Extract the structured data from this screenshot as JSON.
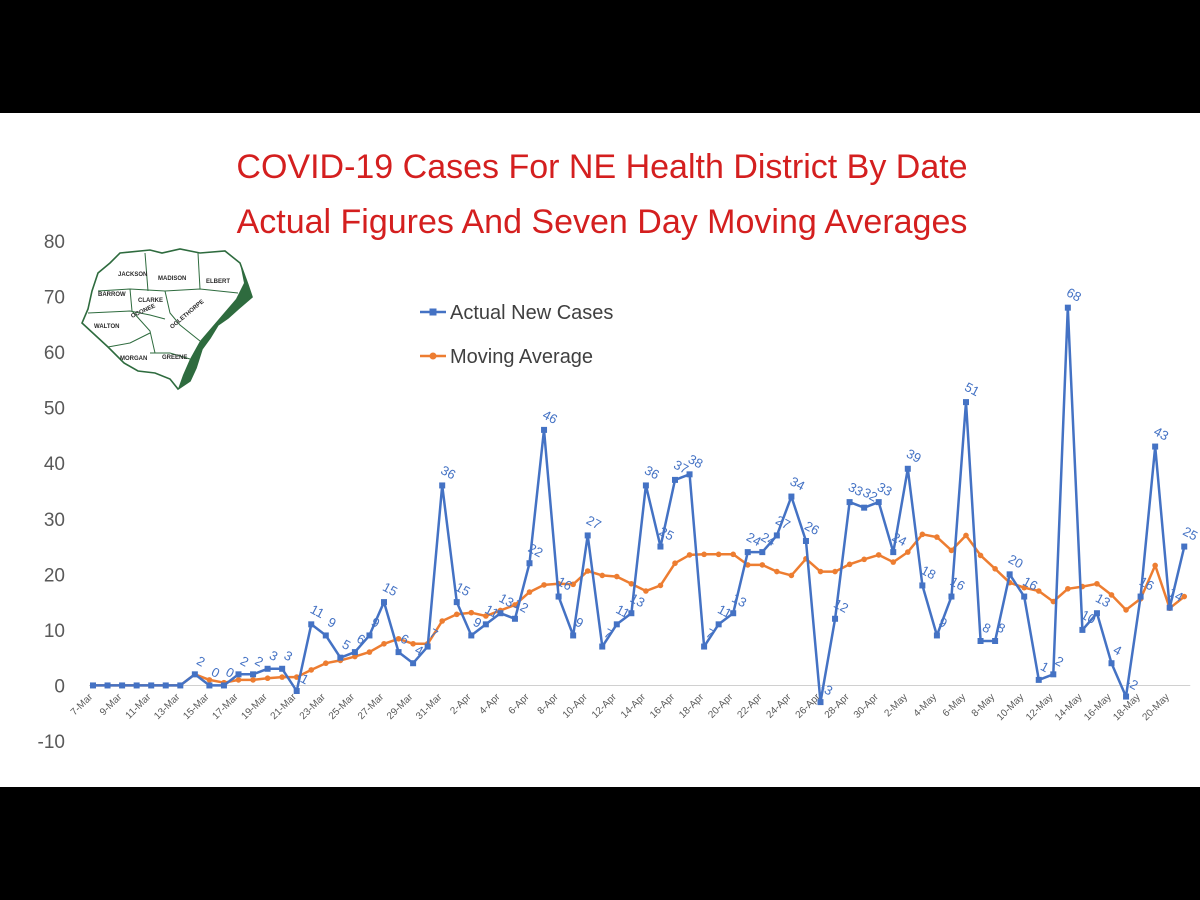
{
  "chart_data": {
    "type": "line",
    "title_lines": [
      "COVID-19 Cases For NE Health District By Date",
      "Actual Figures And Seven Day Moving Averages"
    ],
    "xlabel": "",
    "ylabel": "",
    "ylim": [
      -10,
      80
    ],
    "yticks": [
      "80",
      "70",
      "60",
      "50",
      "40",
      "30",
      "20",
      "10",
      "0",
      "-10"
    ],
    "grid": false,
    "legend_position": "top-center",
    "x_tick_labels": [
      "7-Mar",
      "9-Mar",
      "11-Mar",
      "13-Mar",
      "15-Mar",
      "17-Mar",
      "19-Mar",
      "21-Mar",
      "23-Mar",
      "25-Mar",
      "27-Mar",
      "29-Mar",
      "31-Mar",
      "2-Apr",
      "4-Apr",
      "6-Apr",
      "8-Apr",
      "10-Apr",
      "12-Apr",
      "14-Apr",
      "16-Apr",
      "18-Apr",
      "20-Apr",
      "22-Apr",
      "24-Apr",
      "26-Apr",
      "28-Apr",
      "30-Apr",
      "2-May",
      "4-May",
      "6-May",
      "8-May",
      "10-May",
      "12-May",
      "14-May",
      "16-May",
      "18-May",
      "20-May"
    ],
    "x_start": "7-Mar",
    "series": [
      {
        "name": "Actual New Cases",
        "color": "#4472c4",
        "marker": "square",
        "values": [
          0,
          0,
          0,
          0,
          0,
          0,
          0,
          2,
          0,
          0,
          2,
          2,
          3,
          3,
          -1,
          11,
          9,
          5,
          6,
          9,
          15,
          6,
          4,
          7,
          36,
          15,
          9,
          11,
          13,
          12,
          22,
          46,
          16,
          9,
          27,
          7,
          11,
          13,
          36,
          25,
          37,
          38,
          7,
          11,
          13,
          24,
          24,
          27,
          34,
          26,
          -3,
          12,
          33,
          32,
          33,
          24,
          39,
          18,
          9,
          16,
          51,
          8,
          8,
          20,
          16,
          1,
          2,
          68,
          10,
          13,
          4,
          -2,
          16,
          43,
          14,
          25
        ]
      },
      {
        "name": "Moving Average",
        "color": "#ed7d31",
        "marker": "circle",
        "values": [
          0,
          0,
          0,
          0,
          0,
          0,
          0,
          2,
          1,
          0.5,
          1,
          1,
          1.3,
          1.5,
          1.5,
          2.8,
          4,
          4.5,
          5.2,
          6,
          7.5,
          8.4,
          7.5,
          7.5,
          11.6,
          12.8,
          13.1,
          12.5,
          13.5,
          14.5,
          16.8,
          18.1,
          18.3,
          18.2,
          20.6,
          19.8,
          19.6,
          18.3,
          17,
          18,
          22,
          23.5,
          23.6,
          23.6,
          23.6,
          21.7,
          21.7,
          20.5,
          19.8,
          22.8,
          20.5,
          20.5,
          21.8,
          22.7,
          23.5,
          22.2,
          24,
          27.2,
          26.7,
          24.3,
          27,
          23.4,
          21,
          18.5,
          17.6,
          17,
          15.1,
          17.4,
          17.8,
          18.3,
          16.3,
          13.6,
          15.6,
          21.6,
          13.9,
          16
        ]
      }
    ],
    "data_labels": [
      {
        "i": 7,
        "text": "2"
      },
      {
        "i": 8,
        "text": "0"
      },
      {
        "i": 9,
        "text": "0"
      },
      {
        "i": 10,
        "text": "2"
      },
      {
        "i": 11,
        "text": "2"
      },
      {
        "i": 12,
        "text": "3"
      },
      {
        "i": 13,
        "text": "3"
      },
      {
        "i": 14,
        "text": "-1"
      },
      {
        "i": 15,
        "text": "11"
      },
      {
        "i": 16,
        "text": "9"
      },
      {
        "i": 17,
        "text": "5"
      },
      {
        "i": 18,
        "text": "6"
      },
      {
        "i": 19,
        "text": "9"
      },
      {
        "i": 20,
        "text": "15"
      },
      {
        "i": 21,
        "text": "6"
      },
      {
        "i": 22,
        "text": "4"
      },
      {
        "i": 23,
        "text": "7"
      },
      {
        "i": 24,
        "text": "36"
      },
      {
        "i": 25,
        "text": "15"
      },
      {
        "i": 26,
        "text": "9"
      },
      {
        "i": 27,
        "text": "11"
      },
      {
        "i": 28,
        "text": "13"
      },
      {
        "i": 29,
        "text": "12"
      },
      {
        "i": 30,
        "text": "22"
      },
      {
        "i": 31,
        "text": "46"
      },
      {
        "i": 32,
        "text": "16"
      },
      {
        "i": 33,
        "text": "9"
      },
      {
        "i": 34,
        "text": "27"
      },
      {
        "i": 35,
        "text": "7"
      },
      {
        "i": 36,
        "text": "11"
      },
      {
        "i": 37,
        "text": "13"
      },
      {
        "i": 38,
        "text": "36"
      },
      {
        "i": 39,
        "text": "25"
      },
      {
        "i": 40,
        "text": "37"
      },
      {
        "i": 41,
        "text": "38"
      },
      {
        "i": 42,
        "text": "7"
      },
      {
        "i": 43,
        "text": "11"
      },
      {
        "i": 44,
        "text": "13"
      },
      {
        "i": 45,
        "text": "24"
      },
      {
        "i": 46,
        "text": "24"
      },
      {
        "i": 47,
        "text": "27"
      },
      {
        "i": 48,
        "text": "34"
      },
      {
        "i": 49,
        "text": "26"
      },
      {
        "i": 50,
        "text": "-3"
      },
      {
        "i": 51,
        "text": "12"
      },
      {
        "i": 52,
        "text": "33"
      },
      {
        "i": 53,
        "text": "32"
      },
      {
        "i": 54,
        "text": "33"
      },
      {
        "i": 55,
        "text": "24"
      },
      {
        "i": 56,
        "text": "39"
      },
      {
        "i": 57,
        "text": "18"
      },
      {
        "i": 58,
        "text": "9"
      },
      {
        "i": 59,
        "text": "16"
      },
      {
        "i": 60,
        "text": "51"
      },
      {
        "i": 61,
        "text": "8"
      },
      {
        "i": 62,
        "text": "8"
      },
      {
        "i": 63,
        "text": "20"
      },
      {
        "i": 64,
        "text": "16"
      },
      {
        "i": 65,
        "text": "1"
      },
      {
        "i": 66,
        "text": "2"
      },
      {
        "i": 67,
        "text": "68"
      },
      {
        "i": 68,
        "text": "10"
      },
      {
        "i": 69,
        "text": "13"
      },
      {
        "i": 70,
        "text": "4"
      },
      {
        "i": 71,
        "text": "-2"
      },
      {
        "i": 72,
        "text": "16"
      },
      {
        "i": 73,
        "text": "43"
      },
      {
        "i": 74,
        "text": "14"
      },
      {
        "i": 75,
        "text": "25"
      }
    ]
  },
  "map_inset": {
    "counties": [
      "JACKSON",
      "MADISON",
      "ELBERT",
      "BARROW",
      "CLARKE",
      "OCONEE",
      "OGLETHORPE",
      "WALTON",
      "MORGAN",
      "GREENE"
    ],
    "color": "#2e6b3e"
  }
}
